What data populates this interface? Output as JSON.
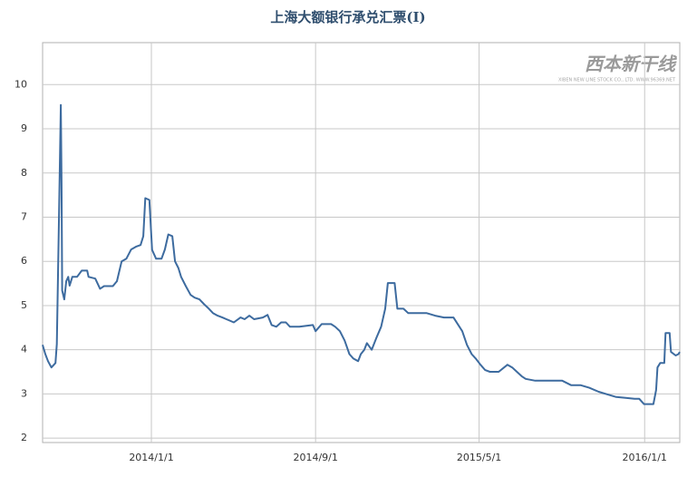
{
  "chart_data": {
    "type": "line",
    "title": "上海大额银行承兑汇票(Ⅰ)",
    "watermark": "西本新干线",
    "watermark_sub": "XIBEN NEW LINE STOCK CO., LTD. WWW.96369.NET",
    "x": [
      "2013/7/24",
      "2013/7/28",
      "2013/8/1",
      "2013/8/6",
      "2013/8/12",
      "2013/8/14",
      "2013/8/17",
      "2013/8/20",
      "2013/8/21",
      "2013/8/22",
      "2013/8/25",
      "2013/8/28",
      "2013/8/31",
      "2013/9/2",
      "2013/9/6",
      "2013/9/13",
      "2013/9/20",
      "2013/9/28",
      "2013/9/30",
      "2013/10/10",
      "2013/10/17",
      "2013/10/23",
      "2013/11/5",
      "2013/11/11",
      "2013/11/18",
      "2013/11/25",
      "2013/12/2",
      "2013/12/9",
      "2013/12/16",
      "2013/12/20",
      "2013/12/23",
      "2013/12/29",
      "2014/1/2",
      "2014/1/8",
      "2014/1/16",
      "2014/1/21",
      "2014/1/26",
      "2014/2/1",
      "2014/2/5",
      "2014/2/10",
      "2014/2/14",
      "2014/2/21",
      "2014/2/28",
      "2014/3/6",
      "2014/3/13",
      "2014/3/20",
      "2014/3/27",
      "2014/4/2",
      "2014/4/9",
      "2014/4/16",
      "2014/4/22",
      "2014/5/3",
      "2014/5/13",
      "2014/5/19",
      "2014/5/26",
      "2014/6/2",
      "2014/6/15",
      "2014/6/22",
      "2014/6/28",
      "2014/7/5",
      "2014/7/12",
      "2014/7/19",
      "2014/7/25",
      "2014/8/8",
      "2014/8/28",
      "2014/9/1",
      "2014/9/10",
      "2014/9/24",
      "2014/9/30",
      "2014/10/7",
      "2014/10/14",
      "2014/10/21",
      "2014/10/27",
      "2014/11/3",
      "2014/11/7",
      "2014/11/12",
      "2014/11/16",
      "2014/11/23",
      "2014/11/30",
      "2014/12/7",
      "2014/12/13",
      "2014/12/17",
      "2014/12/27",
      "2014/12/31",
      "2015/1/9",
      "2015/1/16",
      "2015/1/29",
      "2015/2/12",
      "2015/2/25",
      "2015/3/10",
      "2015/3/24",
      "2015/4/6",
      "2015/4/13",
      "2015/4/20",
      "2015/4/26",
      "2015/5/3",
      "2015/5/10",
      "2015/5/17",
      "2015/5/30",
      "2015/6/12",
      "2015/6/19",
      "2015/6/26",
      "2015/7/3",
      "2015/7/9",
      "2015/7/23",
      "2015/8/5",
      "2015/9/1",
      "2015/9/14",
      "2015/9/28",
      "2015/10/11",
      "2015/10/25",
      "2015/11/7",
      "2015/11/20",
      "2015/12/4",
      "2015/12/17",
      "2015/12/24",
      "2015/12/31",
      "2016/1/14",
      "2016/1/18",
      "2016/1/20",
      "2016/1/24",
      "2016/1/30",
      "2016/2/1",
      "2016/2/7",
      "2016/2/9",
      "2016/2/16",
      "2016/2/20",
      "2016/2/22"
    ],
    "series": [
      {
        "name": "上海大额银行承兑汇票(Ⅰ)",
        "color": "#3d6b9f",
        "values": [
          4.11,
          3.9,
          3.74,
          3.6,
          3.7,
          4.13,
          6.77,
          9.54,
          7.8,
          5.34,
          5.14,
          5.55,
          5.65,
          5.45,
          5.65,
          5.65,
          5.79,
          5.79,
          5.65,
          5.61,
          5.38,
          5.44,
          5.44,
          5.55,
          6.0,
          6.06,
          6.27,
          6.33,
          6.37,
          6.57,
          7.43,
          7.39,
          6.26,
          6.06,
          6.06,
          6.27,
          6.61,
          6.57,
          6.0,
          5.85,
          5.65,
          5.44,
          5.24,
          5.18,
          5.14,
          5.03,
          4.93,
          4.83,
          4.77,
          4.73,
          4.69,
          4.62,
          4.73,
          4.69,
          4.77,
          4.69,
          4.73,
          4.79,
          4.56,
          4.52,
          4.62,
          4.62,
          4.52,
          4.52,
          4.56,
          4.42,
          4.58,
          4.58,
          4.52,
          4.42,
          4.21,
          3.9,
          3.8,
          3.74,
          3.9,
          4.0,
          4.15,
          4.0,
          4.27,
          4.52,
          4.93,
          5.51,
          5.51,
          4.93,
          4.93,
          4.83,
          4.83,
          4.83,
          4.77,
          4.73,
          4.73,
          4.42,
          4.11,
          3.9,
          3.8,
          3.66,
          3.54,
          3.5,
          3.5,
          3.66,
          3.6,
          3.5,
          3.4,
          3.34,
          3.3,
          3.3,
          3.3,
          3.2,
          3.2,
          3.14,
          3.05,
          2.99,
          2.93,
          2.91,
          2.89,
          2.89,
          2.77,
          2.77,
          3.09,
          3.6,
          3.7,
          3.7,
          4.38,
          4.38,
          3.95,
          3.87,
          3.9,
          3.95
        ]
      }
    ],
    "xlim": [
      "2013/7/24",
      "2016/2/22"
    ],
    "xticks": [
      "2014/1/1",
      "2014/9/1",
      "2015/5/1",
      "2016/1/1"
    ],
    "ylim": [
      1.9,
      10.95
    ],
    "yticks": [
      2,
      3,
      4,
      5,
      6,
      7,
      8,
      9,
      10
    ],
    "grid": true
  }
}
